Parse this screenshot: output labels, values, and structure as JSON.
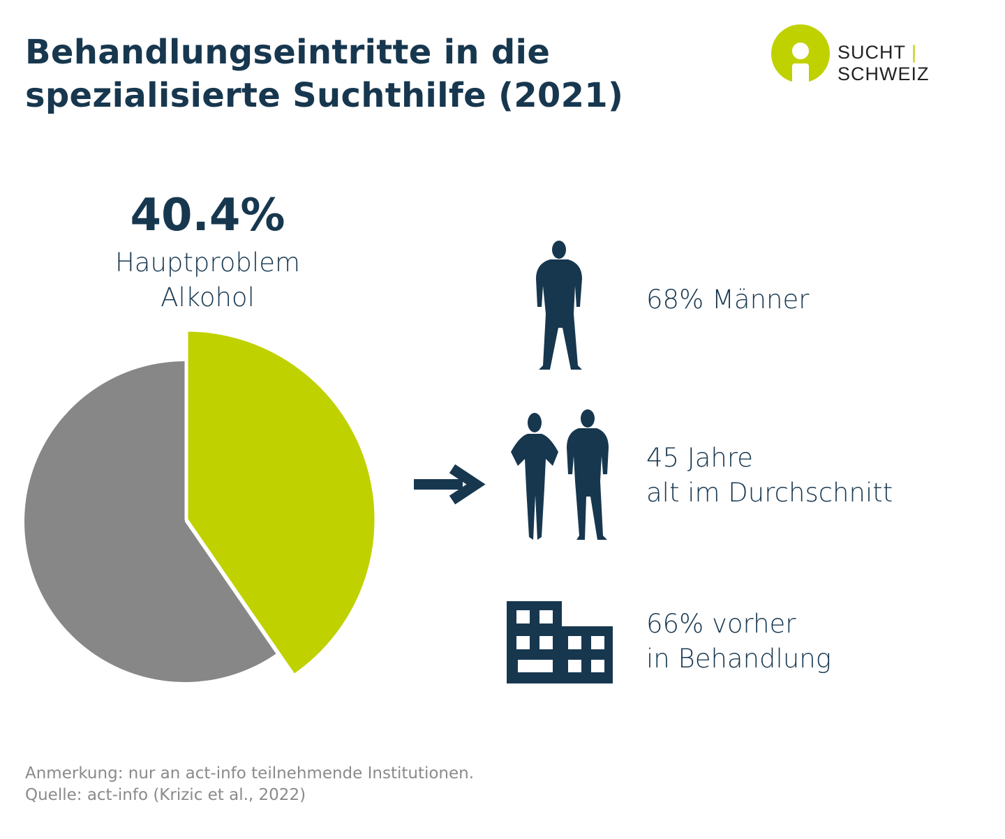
{
  "title_line1": "Behandlungseintritte in die",
  "title_line2": "spezialisierte Suchthilfe (2021)",
  "logo": {
    "text_left": "SUCHT",
    "separator": "|",
    "text_right": "SCHWEIZ",
    "color": "#c0d100"
  },
  "chart_data": {
    "type": "pie",
    "slices": [
      {
        "label": "Hauptproblem Alkohol",
        "value": 40.4,
        "color": "#c0d100",
        "exploded": true
      },
      {
        "label": "",
        "value": 59.6,
        "color": "#878787"
      }
    ],
    "headline_value": "40.4%",
    "headline_label_line1": "Hauptproblem",
    "headline_label_line2": "Alkohol"
  },
  "stats": [
    {
      "icon": "man-silhouette-icon",
      "line1": "68% Männer",
      "line2": ""
    },
    {
      "icon": "couple-silhouette-icon",
      "line1": "45 Jahre",
      "line2": "alt im Durchschnitt"
    },
    {
      "icon": "building-icon",
      "line1": "66% vorher",
      "line2": "in Behandlung"
    }
  ],
  "note_line1": "Anmerkung: nur an act-info teilnehmende Institutionen.",
  "note_line2": "Quelle: act-info (Krizic et al., 2022)",
  "colors": {
    "navy": "#17374f",
    "green": "#c0d100",
    "grey": "#878787"
  }
}
